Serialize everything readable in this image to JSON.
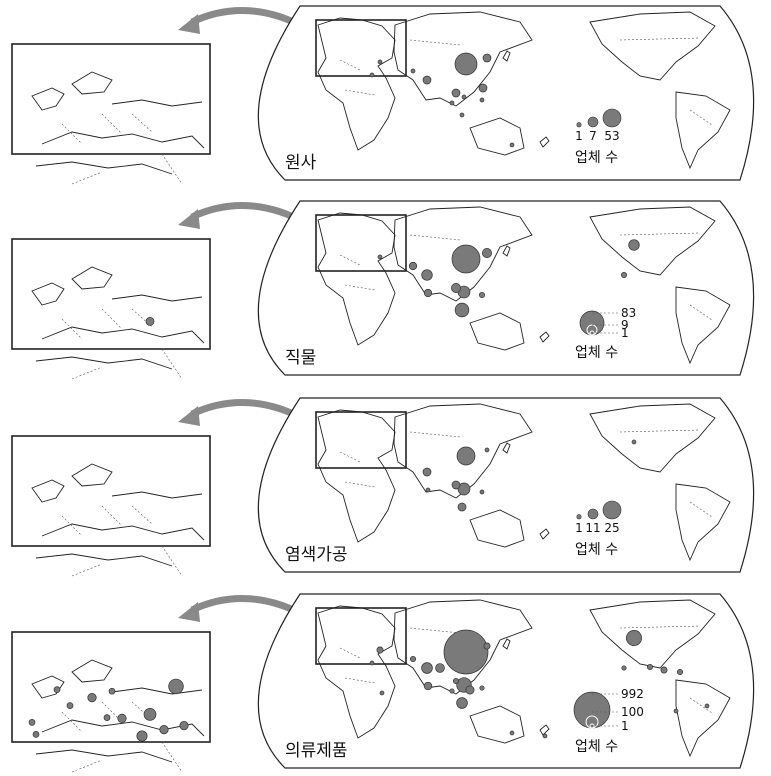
{
  "panels": [
    {
      "title": "원사",
      "legend": {
        "style": "row",
        "labels": [
          "1",
          "7",
          "53"
        ],
        "unit": "업체 수"
      },
      "circles": [
        {
          "region": "china-east",
          "size": 53
        },
        {
          "region": "korea",
          "size": 7
        },
        {
          "region": "taiwan",
          "size": 7
        },
        {
          "region": "india",
          "size": 7
        },
        {
          "region": "thailand",
          "size": 7
        },
        {
          "region": "vietnam",
          "size": 1
        },
        {
          "region": "indonesia",
          "size": 1
        },
        {
          "region": "malaysia",
          "size": 1
        },
        {
          "region": "philippines",
          "size": 1
        },
        {
          "region": "pakistan",
          "size": 1
        },
        {
          "region": "turkey",
          "size": 1
        },
        {
          "region": "egypt",
          "size": 1
        },
        {
          "region": "australia-east",
          "size": 1
        }
      ],
      "inset_circles": []
    },
    {
      "title": "직물",
      "legend": {
        "style": "nested",
        "labels": [
          "83",
          "9",
          "1"
        ],
        "unit": "업체 수"
      },
      "circles": [
        {
          "region": "china-east",
          "size": 83
        },
        {
          "region": "indonesia",
          "size": 20
        },
        {
          "region": "vietnam",
          "size": 15
        },
        {
          "region": "india",
          "size": 12
        },
        {
          "region": "usa-east",
          "size": 12
        },
        {
          "region": "korea",
          "size": 9
        },
        {
          "region": "thailand",
          "size": 9
        },
        {
          "region": "pakistan",
          "size": 6
        },
        {
          "region": "sri-lanka",
          "size": 6
        },
        {
          "region": "philippines",
          "size": 3
        },
        {
          "region": "mexico",
          "size": 3
        },
        {
          "region": "turkey",
          "size": 1
        }
      ],
      "inset_circles": [
        {
          "region": "turkey",
          "size": 9
        }
      ]
    },
    {
      "title": "염색가공",
      "legend": {
        "style": "row",
        "labels": [
          "1",
          "11",
          "25"
        ],
        "unit": "업체 수"
      },
      "circles": [
        {
          "region": "china-east",
          "size": 25
        },
        {
          "region": "vietnam",
          "size": 11
        },
        {
          "region": "india",
          "size": 5
        },
        {
          "region": "indonesia",
          "size": 5
        },
        {
          "region": "thailand",
          "size": 5
        },
        {
          "region": "korea",
          "size": 1
        },
        {
          "region": "sri-lanka",
          "size": 1
        },
        {
          "region": "philippines",
          "size": 1
        },
        {
          "region": "usa-east",
          "size": 1
        }
      ],
      "inset_circles": []
    },
    {
      "title": "의류제품",
      "legend": {
        "style": "nested",
        "labels": [
          "992",
          "100",
          "1"
        ],
        "unit": "업체 수"
      },
      "circles": [
        {
          "region": "china-east",
          "size": 992
        },
        {
          "region": "vietnam",
          "size": 110
        },
        {
          "region": "usa-east",
          "size": 120
        },
        {
          "region": "indonesia",
          "size": 60
        },
        {
          "region": "india",
          "size": 60
        },
        {
          "region": "bangladesh",
          "size": 40
        },
        {
          "region": "sri-lanka",
          "size": 30
        },
        {
          "region": "cambodia",
          "size": 35
        },
        {
          "region": "korea",
          "size": 20
        },
        {
          "region": "turkey",
          "size": 20
        },
        {
          "region": "pakistan",
          "size": 15
        },
        {
          "region": "thailand",
          "size": 15
        },
        {
          "region": "malaysia",
          "size": 10
        },
        {
          "region": "philippines",
          "size": 10
        },
        {
          "region": "honduras",
          "size": 20
        },
        {
          "region": "guatemala",
          "size": 15
        },
        {
          "region": "mexico",
          "size": 10
        },
        {
          "region": "haiti",
          "size": 15
        },
        {
          "region": "egypt",
          "size": 5
        },
        {
          "region": "kenya",
          "size": 5
        },
        {
          "region": "brazil",
          "size": 3
        },
        {
          "region": "peru",
          "size": 3
        },
        {
          "region": "australia-east",
          "size": 3
        },
        {
          "region": "new-zealand",
          "size": 2
        }
      ],
      "inset_circles": [
        {
          "region": "russia-west",
          "size": 30
        },
        {
          "region": "uk",
          "size": 5
        },
        {
          "region": "poland",
          "size": 5
        },
        {
          "region": "germany",
          "size": 10
        },
        {
          "region": "france",
          "size": 5
        },
        {
          "region": "portugal",
          "size": 5
        },
        {
          "region": "italy",
          "size": 5
        },
        {
          "region": "greece",
          "size": 10
        },
        {
          "region": "turkey",
          "size": 20
        },
        {
          "region": "egypt",
          "size": 15
        },
        {
          "region": "jordan",
          "size": 10
        },
        {
          "region": "iran",
          "size": 10
        },
        {
          "region": "morocco",
          "size": 5
        }
      ]
    }
  ],
  "colors": {
    "circle_fill": "#7a7a7a",
    "circle_stroke": "#333333",
    "arrow": "#8a8a8a",
    "line": "#222222"
  }
}
